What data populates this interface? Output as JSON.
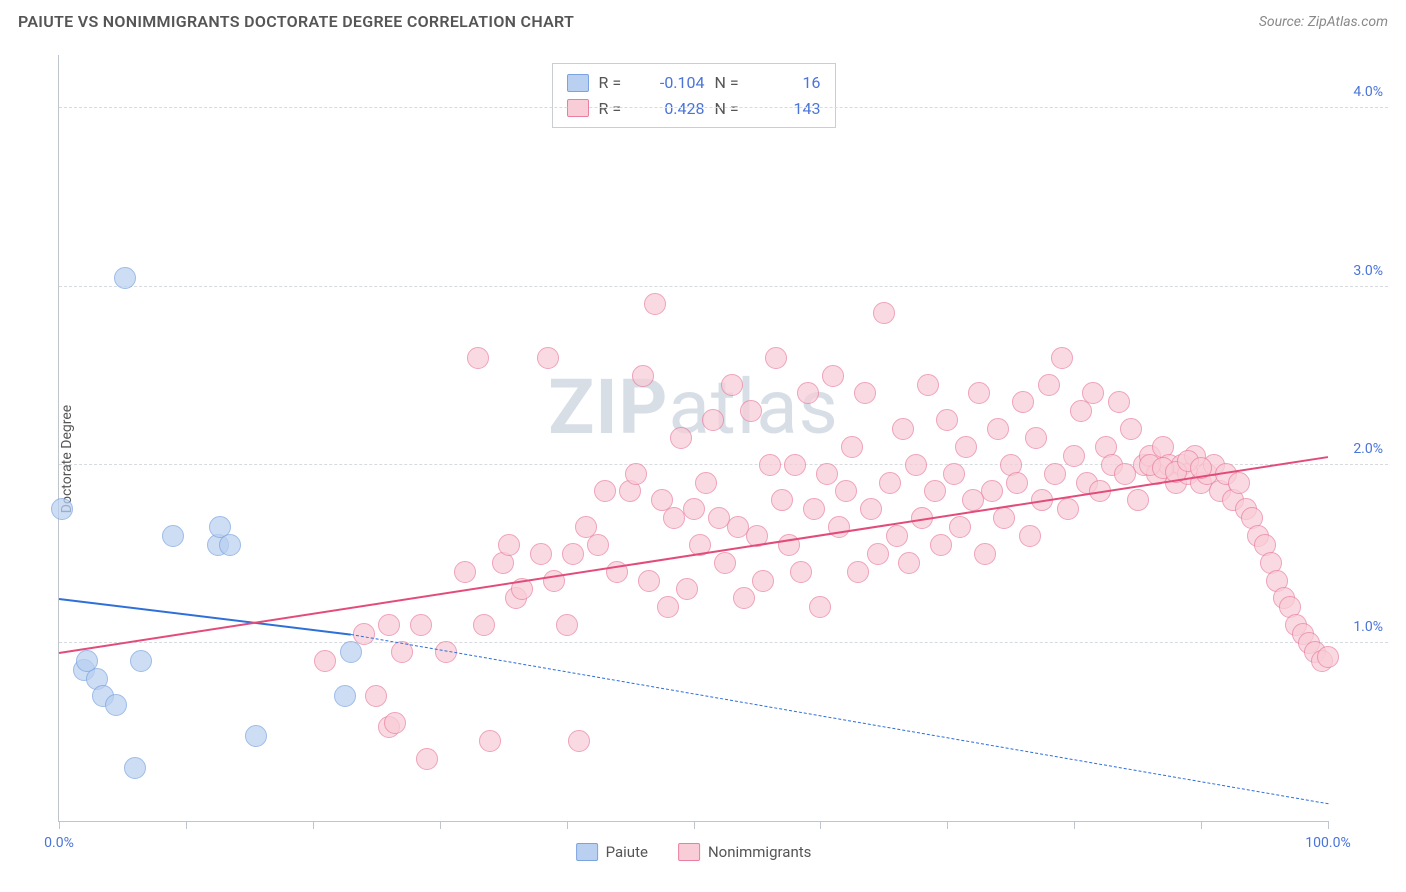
{
  "title": "PAIUTE VS NONIMMIGRANTS DOCTORATE DEGREE CORRELATION CHART",
  "source": "Source: ZipAtlas.com",
  "watermark": {
    "bold": "ZIP",
    "rest": "atlas"
  },
  "ylabel": "Doctorate Degree",
  "chart": {
    "type": "scatter",
    "xlim": [
      0,
      100
    ],
    "ylim": [
      0,
      4.3
    ],
    "ygrid": [
      1.0,
      2.0,
      3.0,
      4.0
    ],
    "ytick_labels": [
      "1.0%",
      "2.0%",
      "3.0%",
      "4.0%"
    ],
    "xticks": [
      0,
      10,
      20,
      30,
      40,
      50,
      60,
      70,
      80,
      90,
      100
    ],
    "xtick_labels": {
      "0": "0.0%",
      "100": "100.0%"
    },
    "background_color": "#ffffff",
    "grid_color": "#d7dbe0",
    "axis_color": "#bfc5cc",
    "point_radius": 11,
    "series": [
      {
        "name": "Paiute",
        "color_fill": "#b9d0f0",
        "color_stroke": "#7aa3e0",
        "line_color": "#2f6fd8",
        "r": "-0.104",
        "n": "16",
        "regression": {
          "x1": 0,
          "y1": 1.25,
          "x2": 23,
          "y2": 1.05,
          "dash_to_x": 100,
          "dash_to_y": 0.1
        },
        "points": [
          [
            0.2,
            1.75
          ],
          [
            5.2,
            3.05
          ],
          [
            2.0,
            0.85
          ],
          [
            3.0,
            0.8
          ],
          [
            3.5,
            0.7
          ],
          [
            2.2,
            0.9
          ],
          [
            4.5,
            0.65
          ],
          [
            6.5,
            0.9
          ],
          [
            6.0,
            0.3
          ],
          [
            9.0,
            1.6
          ],
          [
            12.5,
            1.55
          ],
          [
            12.7,
            1.65
          ],
          [
            13.5,
            1.55
          ],
          [
            15.5,
            0.48
          ],
          [
            22.5,
            0.7
          ],
          [
            23.0,
            0.95
          ]
        ]
      },
      {
        "name": "Nonimmigrants",
        "color_fill": "#f9cdd8",
        "color_stroke": "#e97fa0",
        "line_color": "#e24c7a",
        "r": "0.428",
        "n": "143",
        "regression": {
          "x1": 0,
          "y1": 0.95,
          "x2": 100,
          "y2": 2.05
        },
        "points": [
          [
            21.0,
            0.9
          ],
          [
            24.0,
            1.05
          ],
          [
            25.0,
            0.7
          ],
          [
            26.0,
            0.53
          ],
          [
            26.5,
            0.55
          ],
          [
            26.0,
            1.1
          ],
          [
            27.0,
            0.95
          ],
          [
            28.5,
            1.1
          ],
          [
            29.0,
            0.35
          ],
          [
            30.5,
            0.95
          ],
          [
            32.0,
            1.4
          ],
          [
            33.0,
            2.6
          ],
          [
            33.5,
            1.1
          ],
          [
            34.0,
            0.45
          ],
          [
            35.0,
            1.45
          ],
          [
            35.5,
            1.55
          ],
          [
            36.0,
            1.25
          ],
          [
            36.5,
            1.3
          ],
          [
            38.0,
            1.5
          ],
          [
            38.5,
            2.6
          ],
          [
            39.0,
            1.35
          ],
          [
            40.0,
            1.1
          ],
          [
            40.5,
            1.5
          ],
          [
            41.0,
            0.45
          ],
          [
            41.5,
            1.65
          ],
          [
            42.5,
            1.55
          ],
          [
            43.0,
            1.85
          ],
          [
            44.0,
            1.4
          ],
          [
            45.0,
            1.85
          ],
          [
            45.5,
            1.95
          ],
          [
            46.0,
            2.5
          ],
          [
            46.5,
            1.35
          ],
          [
            47.0,
            2.9
          ],
          [
            47.5,
            1.8
          ],
          [
            48.0,
            1.2
          ],
          [
            48.5,
            1.7
          ],
          [
            49.0,
            2.15
          ],
          [
            49.5,
            1.3
          ],
          [
            50.0,
            1.75
          ],
          [
            50.5,
            1.55
          ],
          [
            51.0,
            1.9
          ],
          [
            51.5,
            2.25
          ],
          [
            52.0,
            1.7
          ],
          [
            52.5,
            1.45
          ],
          [
            53.0,
            2.45
          ],
          [
            53.5,
            1.65
          ],
          [
            54.0,
            1.25
          ],
          [
            54.5,
            2.3
          ],
          [
            55.0,
            1.6
          ],
          [
            55.5,
            1.35
          ],
          [
            56.0,
            2.0
          ],
          [
            56.5,
            2.6
          ],
          [
            57.0,
            1.8
          ],
          [
            57.5,
            1.55
          ],
          [
            58.0,
            2.0
          ],
          [
            58.5,
            1.4
          ],
          [
            59.0,
            2.4
          ],
          [
            59.5,
            1.75
          ],
          [
            60.0,
            1.2
          ],
          [
            60.5,
            1.95
          ],
          [
            61.0,
            2.5
          ],
          [
            61.5,
            1.65
          ],
          [
            62.0,
            1.85
          ],
          [
            62.5,
            2.1
          ],
          [
            63.0,
            1.4
          ],
          [
            63.5,
            2.4
          ],
          [
            64.0,
            1.75
          ],
          [
            64.5,
            1.5
          ],
          [
            65.0,
            2.85
          ],
          [
            65.5,
            1.9
          ],
          [
            66.0,
            1.6
          ],
          [
            66.5,
            2.2
          ],
          [
            67.0,
            1.45
          ],
          [
            67.5,
            2.0
          ],
          [
            68.0,
            1.7
          ],
          [
            68.5,
            2.45
          ],
          [
            69.0,
            1.85
          ],
          [
            69.5,
            1.55
          ],
          [
            70.0,
            2.25
          ],
          [
            70.5,
            1.95
          ],
          [
            71.0,
            1.65
          ],
          [
            71.5,
            2.1
          ],
          [
            72.0,
            1.8
          ],
          [
            72.5,
            2.4
          ],
          [
            73.0,
            1.5
          ],
          [
            73.5,
            1.85
          ],
          [
            74.0,
            2.2
          ],
          [
            74.5,
            1.7
          ],
          [
            75.0,
            2.0
          ],
          [
            75.5,
            1.9
          ],
          [
            76.0,
            2.35
          ],
          [
            76.5,
            1.6
          ],
          [
            77.0,
            2.15
          ],
          [
            77.5,
            1.8
          ],
          [
            78.0,
            2.45
          ],
          [
            78.5,
            1.95
          ],
          [
            79.0,
            2.6
          ],
          [
            79.5,
            1.75
          ],
          [
            80.0,
            2.05
          ],
          [
            80.5,
            2.3
          ],
          [
            81.0,
            1.9
          ],
          [
            81.5,
            2.4
          ],
          [
            82.0,
            1.85
          ],
          [
            82.5,
            2.1
          ],
          [
            83.0,
            2.0
          ],
          [
            83.5,
            2.35
          ],
          [
            84.0,
            1.95
          ],
          [
            84.5,
            2.2
          ],
          [
            85.0,
            1.8
          ],
          [
            85.5,
            2.0
          ],
          [
            86.0,
            2.05
          ],
          [
            86.5,
            1.95
          ],
          [
            87.0,
            2.1
          ],
          [
            87.5,
            2.0
          ],
          [
            88.0,
            1.9
          ],
          [
            88.5,
            2.0
          ],
          [
            89.0,
            1.95
          ],
          [
            89.5,
            2.05
          ],
          [
            90.0,
            1.9
          ],
          [
            90.5,
            1.95
          ],
          [
            91.0,
            2.0
          ],
          [
            91.5,
            1.85
          ],
          [
            92.0,
            1.95
          ],
          [
            92.5,
            1.8
          ],
          [
            93.0,
            1.9
          ],
          [
            93.5,
            1.75
          ],
          [
            94.0,
            1.7
          ],
          [
            94.5,
            1.6
          ],
          [
            95.0,
            1.55
          ],
          [
            95.5,
            1.45
          ],
          [
            96.0,
            1.35
          ],
          [
            96.5,
            1.25
          ],
          [
            97.0,
            1.2
          ],
          [
            97.5,
            1.1
          ],
          [
            98.0,
            1.05
          ],
          [
            98.5,
            1.0
          ],
          [
            99.0,
            0.95
          ],
          [
            99.5,
            0.9
          ],
          [
            100.0,
            0.92
          ],
          [
            86.0,
            2.0
          ],
          [
            87.0,
            1.98
          ],
          [
            88.0,
            1.96
          ],
          [
            89.0,
            2.02
          ],
          [
            90.0,
            1.98
          ]
        ]
      }
    ],
    "bottom_legend": [
      {
        "label": "Paiute",
        "swatch_fill": "#b9d0f0",
        "swatch_stroke": "#7aa3e0"
      },
      {
        "label": "Nonimmigrants",
        "swatch_fill": "#f9cdd8",
        "swatch_stroke": "#e97fa0"
      }
    ],
    "stat_legend_labels": {
      "r": "R =",
      "n": "N ="
    }
  }
}
